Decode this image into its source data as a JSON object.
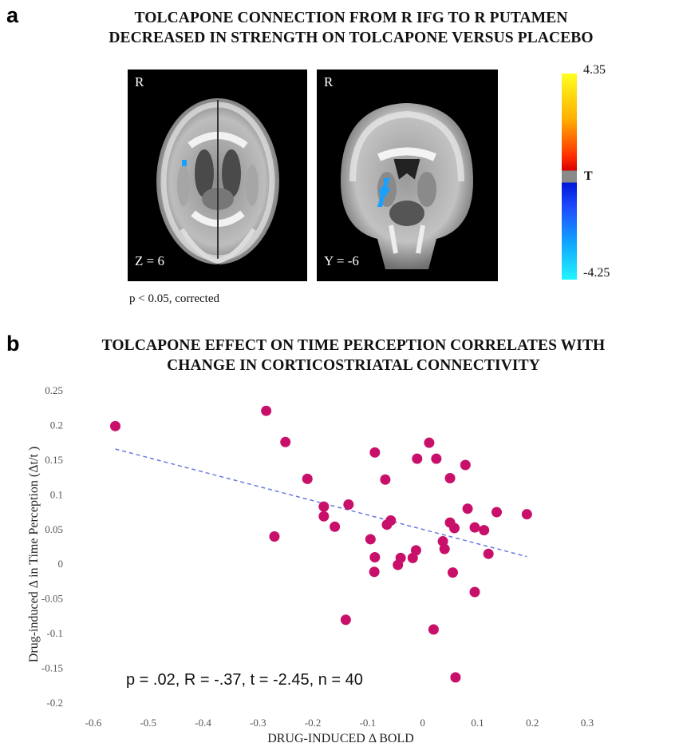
{
  "panel_a": {
    "letter": "a",
    "title_line1": "TOLCAPONE CONNECTION FROM R IFG TO R PUTAMEN",
    "title_line2": "DECREASED IN STRENGTH ON TOLCAPONE VERSUS PLACEBO",
    "axial": {
      "orientation": "R",
      "slice": "Z = 6"
    },
    "coronal": {
      "orientation": "R",
      "slice": "Y = -6"
    },
    "colorbar": {
      "max": "4.35",
      "min": "-4.25",
      "label": "T"
    },
    "threshold_note": "p < 0.05, corrected"
  },
  "panel_b": {
    "letter": "b",
    "title_line1": "TOLCAPONE EFFECT ON TIME PERCEPTION CORRELATES WITH",
    "title_line2": "CHANGE IN CORTICOSTRIATAL CONNECTIVITY",
    "stats_text": "p = .02, R = -.37, t = -2.45, n = 40"
  },
  "chart_data": {
    "type": "scatter",
    "xlabel": "DRUG-INDUCED Δ BOLD",
    "ylabel": "Drug-induced Δ in Time Perception (Δt/t )",
    "xlim": [
      -0.6,
      0.3
    ],
    "ylim": [
      -0.2,
      0.25
    ],
    "x_ticks": [
      "-0.6",
      "-0.5",
      "-0.4",
      "-0.3",
      "-0.2",
      "-0.1",
      "0",
      "0.1",
      "0.2",
      "0.3"
    ],
    "y_ticks": [
      "0.25",
      "0.2",
      "0.15",
      "0.1",
      "0.05",
      "0",
      "-0.05",
      "-0.1",
      "-0.15",
      "-0.2"
    ],
    "point_color": "#c8106a",
    "trendline_color": "#6a78e0",
    "trendline": {
      "x": [
        -0.56,
        0.19
      ],
      "y": [
        0.166,
        0.011
      ]
    },
    "points": [
      {
        "x": -0.56,
        "y": 0.199
      },
      {
        "x": -0.285,
        "y": 0.221
      },
      {
        "x": -0.25,
        "y": 0.176
      },
      {
        "x": -0.27,
        "y": 0.04
      },
      {
        "x": -0.21,
        "y": 0.123
      },
      {
        "x": -0.18,
        "y": 0.083
      },
      {
        "x": -0.18,
        "y": 0.069
      },
      {
        "x": -0.16,
        "y": 0.054
      },
      {
        "x": -0.135,
        "y": 0.086
      },
      {
        "x": -0.14,
        "y": -0.08
      },
      {
        "x": -0.095,
        "y": 0.036
      },
      {
        "x": -0.087,
        "y": 0.161
      },
      {
        "x": -0.087,
        "y": 0.01
      },
      {
        "x": -0.088,
        "y": -0.011
      },
      {
        "x": -0.068,
        "y": 0.122
      },
      {
        "x": -0.065,
        "y": 0.057
      },
      {
        "x": -0.058,
        "y": 0.063
      },
      {
        "x": -0.045,
        "y": -0.001
      },
      {
        "x": -0.04,
        "y": 0.009
      },
      {
        "x": -0.018,
        "y": 0.009
      },
      {
        "x": -0.012,
        "y": 0.02
      },
      {
        "x": -0.01,
        "y": 0.152
      },
      {
        "x": 0.012,
        "y": 0.175
      },
      {
        "x": 0.025,
        "y": 0.152
      },
      {
        "x": 0.037,
        "y": 0.033
      },
      {
        "x": 0.04,
        "y": 0.022
      },
      {
        "x": 0.05,
        "y": 0.124
      },
      {
        "x": 0.05,
        "y": 0.06
      },
      {
        "x": 0.058,
        "y": 0.052
      },
      {
        "x": 0.055,
        "y": -0.012
      },
      {
        "x": 0.02,
        "y": -0.094
      },
      {
        "x": 0.06,
        "y": -0.163
      },
      {
        "x": 0.078,
        "y": 0.143
      },
      {
        "x": 0.082,
        "y": 0.08
      },
      {
        "x": 0.095,
        "y": 0.053
      },
      {
        "x": 0.095,
        "y": -0.04
      },
      {
        "x": 0.112,
        "y": 0.049
      },
      {
        "x": 0.12,
        "y": 0.015
      },
      {
        "x": 0.135,
        "y": 0.075
      },
      {
        "x": 0.19,
        "y": 0.072
      }
    ]
  }
}
